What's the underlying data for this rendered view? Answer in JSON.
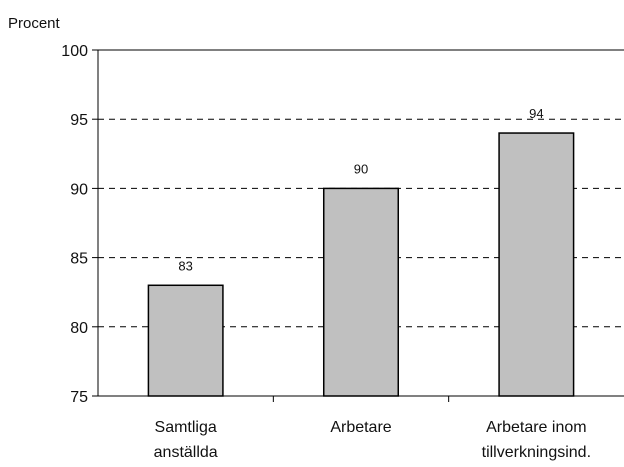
{
  "chart_data": {
    "type": "bar",
    "title": "",
    "xlabel": "",
    "ylabel": "Procent",
    "categories": [
      [
        "Samtliga",
        "anställda"
      ],
      [
        "Arbetare"
      ],
      [
        "Arbetare inom",
        "tillverkningsind."
      ]
    ],
    "values": [
      83,
      90,
      94
    ],
    "data_labels": [
      "83",
      "90",
      "94"
    ],
    "ylim": [
      75,
      100
    ],
    "yticks": [
      75,
      80,
      85,
      90,
      95,
      100
    ],
    "grid": "dashed horizontal",
    "legend": "none",
    "colors": {
      "bar_fill": "#c0c0c0",
      "bar_stroke": "#000000",
      "axis": "#000000",
      "grid": "#000000"
    }
  }
}
